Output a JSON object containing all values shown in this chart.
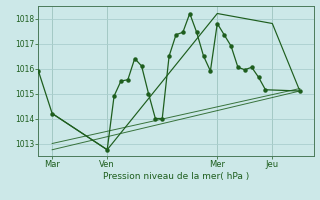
{
  "background_color": "#cce8e8",
  "grid_color": "#aacece",
  "line_color": "#1e5e1e",
  "title": "Pression niveau de la mer( hPa )",
  "ylim": [
    1012.5,
    1018.5
  ],
  "yticks": [
    1013,
    1014,
    1015,
    1016,
    1017,
    1018
  ],
  "day_labels": [
    "Mar",
    "Ven",
    "Mer",
    "Jeu"
  ],
  "day_positions": [
    2,
    10,
    26,
    34
  ],
  "vline_positions": [
    2,
    10,
    26,
    34
  ],
  "xlim": [
    0,
    40
  ],
  "series1_x": [
    0,
    2,
    10,
    11,
    12,
    13,
    14,
    15,
    16,
    17,
    18,
    19,
    20,
    21,
    22,
    23,
    24,
    25,
    26,
    27,
    28,
    29,
    30,
    31,
    32,
    33,
    38
  ],
  "series1_y": [
    1015.9,
    1014.2,
    1012.75,
    1014.9,
    1015.5,
    1015.55,
    1016.4,
    1016.1,
    1015.0,
    1014.0,
    1014.0,
    1016.5,
    1017.35,
    1017.45,
    1018.2,
    1017.45,
    1016.5,
    1015.9,
    1017.8,
    1017.35,
    1016.9,
    1016.05,
    1015.95,
    1016.05,
    1015.65,
    1015.15,
    1015.1
  ],
  "series2_x": [
    2,
    10,
    26,
    34,
    38
  ],
  "series2_y": [
    1014.2,
    1012.75,
    1018.2,
    1017.8,
    1015.1
  ],
  "series3_x": [
    2,
    38
  ],
  "series3_y": [
    1012.75,
    1015.1
  ],
  "series4_x": [
    2,
    38
  ],
  "series4_y": [
    1013.0,
    1015.2
  ]
}
